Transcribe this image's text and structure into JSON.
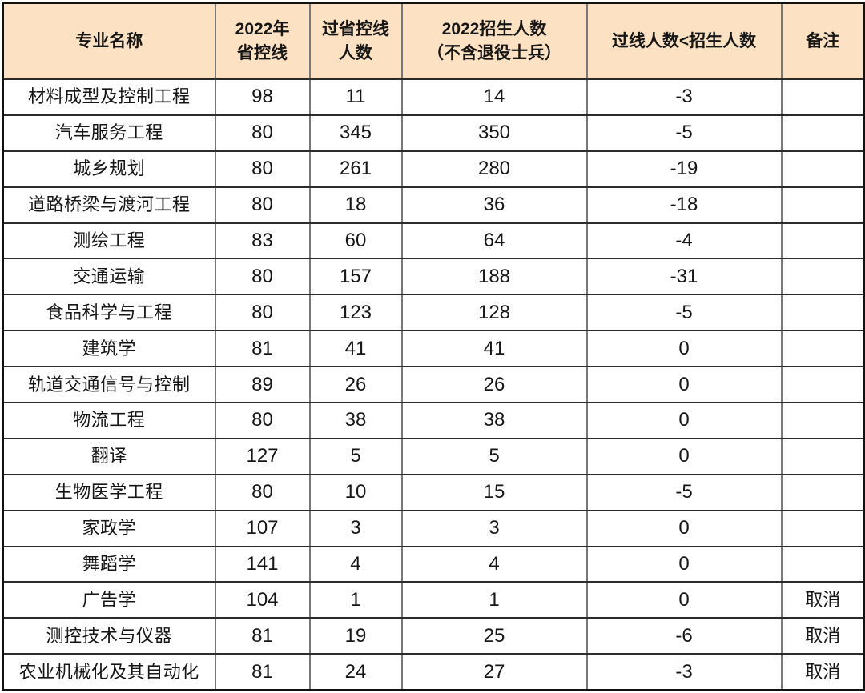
{
  "colors": {
    "header_bg": "#FCE1C2",
    "row_bg": "#FFFFFF",
    "vertical_grid_line": "#787878",
    "horizontal_grid_line": "#2B2B2B",
    "outer_border": "#111111",
    "text": "#161616"
  },
  "chart_data": {
    "type": "table",
    "columns": [
      "专业名称",
      "2022年\n省控线",
      "过省控线\n人数",
      "2022招生人数\n（不含退役士兵）",
      "过线人数<招生人数",
      "备注"
    ],
    "rows": [
      [
        "材料成型及控制工程",
        "98",
        "11",
        "14",
        "-3",
        ""
      ],
      [
        "汽车服务工程",
        "80",
        "345",
        "350",
        "-5",
        ""
      ],
      [
        "城乡规划",
        "80",
        "261",
        "280",
        "-19",
        ""
      ],
      [
        "道路桥梁与渡河工程",
        "80",
        "18",
        "36",
        "-18",
        ""
      ],
      [
        "测绘工程",
        "83",
        "60",
        "64",
        "-4",
        ""
      ],
      [
        "交通运输",
        "80",
        "157",
        "188",
        "-31",
        ""
      ],
      [
        "食品科学与工程",
        "80",
        "123",
        "128",
        "-5",
        ""
      ],
      [
        "建筑学",
        "81",
        "41",
        "41",
        "0",
        ""
      ],
      [
        "轨道交通信号与控制",
        "89",
        "26",
        "26",
        "0",
        ""
      ],
      [
        "物流工程",
        "80",
        "38",
        "38",
        "0",
        ""
      ],
      [
        "翻译",
        "127",
        "5",
        "5",
        "0",
        ""
      ],
      [
        "生物医学工程",
        "80",
        "10",
        "15",
        "-5",
        ""
      ],
      [
        "家政学",
        "107",
        "3",
        "3",
        "0",
        ""
      ],
      [
        "舞蹈学",
        "141",
        "4",
        "4",
        "0",
        ""
      ],
      [
        "广告学",
        "104",
        "1",
        "1",
        "0",
        "取消"
      ],
      [
        "测控技术与仪器",
        "81",
        "19",
        "25",
        "-6",
        "取消"
      ],
      [
        "农业机械化及其自动化",
        "81",
        "24",
        "27",
        "-3",
        "取消"
      ]
    ]
  }
}
